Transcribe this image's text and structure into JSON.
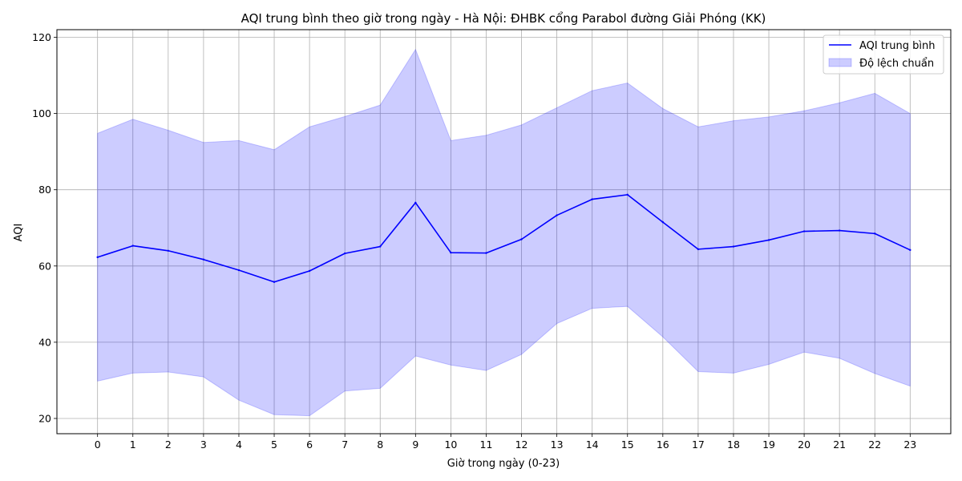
{
  "chart_data": {
    "type": "line",
    "title": "AQI trung bình theo giờ trong ngày - Hà Nội: ĐHBK cổng Parabol đường Giải Phóng (KK)",
    "xlabel": "Giờ trong ngày (0-23)",
    "ylabel": "AQI",
    "x": [
      0,
      1,
      2,
      3,
      4,
      5,
      6,
      7,
      8,
      9,
      10,
      11,
      12,
      13,
      14,
      15,
      16,
      17,
      18,
      19,
      20,
      21,
      22,
      23
    ],
    "x_ticks": [
      "0",
      "1",
      "2",
      "3",
      "4",
      "5",
      "6",
      "7",
      "8",
      "9",
      "10",
      "11",
      "12",
      "13",
      "14",
      "15",
      "16",
      "17",
      "18",
      "19",
      "20",
      "21",
      "22",
      "23"
    ],
    "y_ticks": [
      "20",
      "40",
      "60",
      "80",
      "100",
      "120"
    ],
    "xlim": [
      -1.15,
      24.15
    ],
    "ylim": [
      16,
      122
    ],
    "grid": true,
    "legend_position": "top-right",
    "series": [
      {
        "name": "AQI trung bình",
        "kind": "line",
        "color": "#0000ff",
        "values": [
          62.3,
          65.3,
          64.0,
          61.7,
          58.9,
          55.8,
          58.7,
          63.3,
          65.1,
          76.6,
          63.5,
          63.4,
          67.0,
          73.3,
          77.5,
          78.7,
          71.5,
          64.4,
          65.1,
          66.8,
          69.1,
          69.3,
          68.5,
          64.2
        ]
      },
      {
        "name": "Độ lệch chuẩn",
        "kind": "band",
        "color": "#0000ff",
        "upper": [
          94.8,
          98.5,
          95.6,
          92.4,
          92.9,
          90.5,
          96.5,
          99.2,
          102.2,
          116.8,
          92.9,
          94.3,
          97.0,
          101.5,
          106.0,
          108.0,
          101.3,
          96.5,
          98.1,
          99.1,
          100.7,
          102.8,
          105.3,
          100.0
        ],
        "lower": [
          29.8,
          31.9,
          32.2,
          30.9,
          24.8,
          21.0,
          20.7,
          27.2,
          27.9,
          36.4,
          34.0,
          32.6,
          36.8,
          44.9,
          48.9,
          49.4,
          41.4,
          32.3,
          31.9,
          34.2,
          37.4,
          35.8,
          31.8,
          28.5
        ]
      }
    ]
  }
}
